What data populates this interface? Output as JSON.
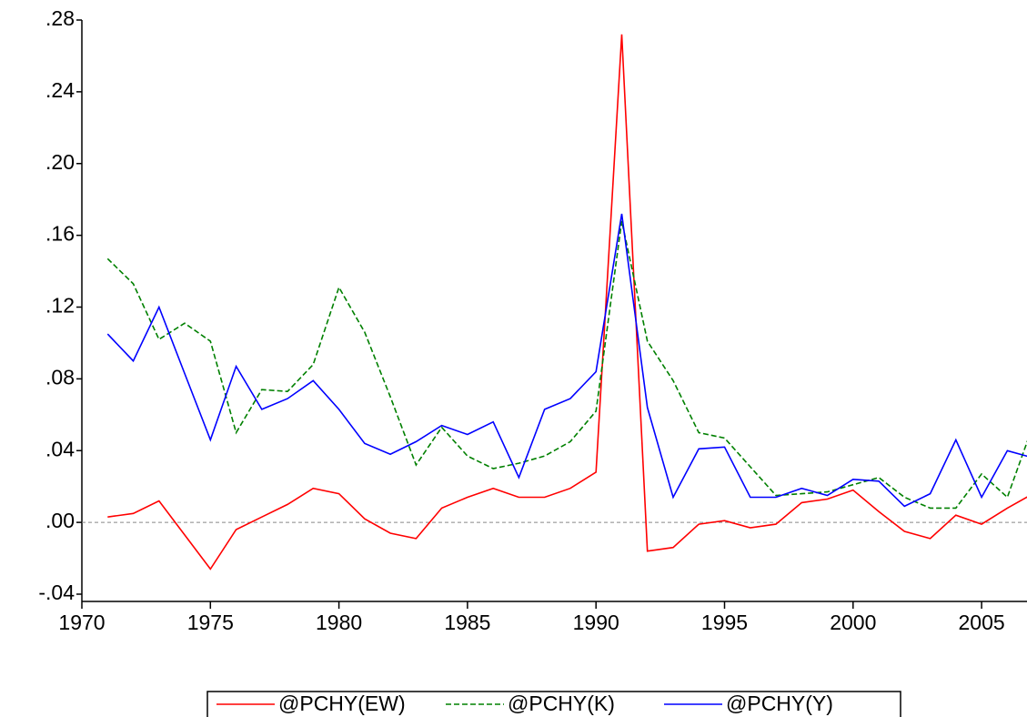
{
  "chart_data": {
    "type": "line",
    "x": [
      1971,
      1972,
      1973,
      1974,
      1975,
      1976,
      1977,
      1978,
      1979,
      1980,
      1981,
      1982,
      1983,
      1984,
      1985,
      1986,
      1987,
      1988,
      1989,
      1990,
      1991,
      1992,
      1993,
      1994,
      1995,
      1996,
      1997,
      1998,
      1999,
      2000,
      2001,
      2002,
      2003,
      2004,
      2005,
      2006,
      2007
    ],
    "series": [
      {
        "name": "@PCHY(EW)",
        "color": "#ff0000",
        "line_style": "solid",
        "values": [
          0.003,
          0.005,
          0.012,
          -0.007,
          -0.026,
          -0.004,
          0.003,
          0.01,
          0.019,
          0.016,
          0.002,
          -0.006,
          -0.009,
          0.008,
          0.014,
          0.019,
          0.014,
          0.014,
          0.019,
          0.028,
          0.272,
          -0.016,
          -0.014,
          -0.001,
          0.001,
          -0.003,
          -0.001,
          0.011,
          0.013,
          0.018,
          0.006,
          -0.005,
          -0.009,
          0.004,
          -0.001,
          0.008,
          0.016
        ]
      },
      {
        "name": "@PCHY(K)",
        "color": "#008000",
        "line_style": "dashed",
        "values": [
          0.147,
          0.133,
          0.102,
          0.111,
          0.101,
          0.05,
          0.074,
          0.073,
          0.088,
          0.131,
          0.106,
          0.07,
          0.032,
          0.053,
          0.037,
          0.03,
          0.033,
          0.037,
          0.045,
          0.062,
          0.168,
          0.101,
          0.079,
          0.05,
          0.047,
          0.031,
          0.015,
          0.016,
          0.017,
          0.021,
          0.025,
          0.014,
          0.008,
          0.008,
          0.027,
          0.014,
          0.054
        ]
      },
      {
        "name": "@PCHY(Y)",
        "color": "#0000ff",
        "line_style": "solid",
        "values": [
          0.105,
          0.09,
          0.12,
          0.083,
          0.046,
          0.087,
          0.063,
          0.069,
          0.079,
          0.063,
          0.044,
          0.038,
          0.045,
          0.054,
          0.049,
          0.056,
          0.025,
          0.063,
          0.069,
          0.084,
          0.172,
          0.064,
          0.014,
          0.041,
          0.042,
          0.014,
          0.014,
          0.019,
          0.015,
          0.024,
          0.023,
          0.009,
          0.016,
          0.046,
          0.014,
          0.04,
          0.036
        ]
      }
    ],
    "xlim": [
      1970,
      2006.7
    ],
    "xticks": [
      1970,
      1975,
      1980,
      1985,
      1990,
      1995,
      2000,
      2005
    ],
    "ylim": [
      -0.04,
      0.28
    ],
    "yticks": [
      {
        "value": -0.04,
        "label": "-.04"
      },
      {
        "value": 0,
        "label": ".00"
      },
      {
        "value": 0.04,
        "label": ".04"
      },
      {
        "value": 0.08,
        "label": ".08"
      },
      {
        "value": 0.12,
        "label": ".12"
      },
      {
        "value": 0.16,
        "label": ".16"
      },
      {
        "value": 0.2,
        "label": ".20"
      },
      {
        "value": 0.24,
        "label": ".24"
      },
      {
        "value": 0.28,
        "label": ".28"
      }
    ],
    "reference_line": 0,
    "legend": "bottom"
  }
}
